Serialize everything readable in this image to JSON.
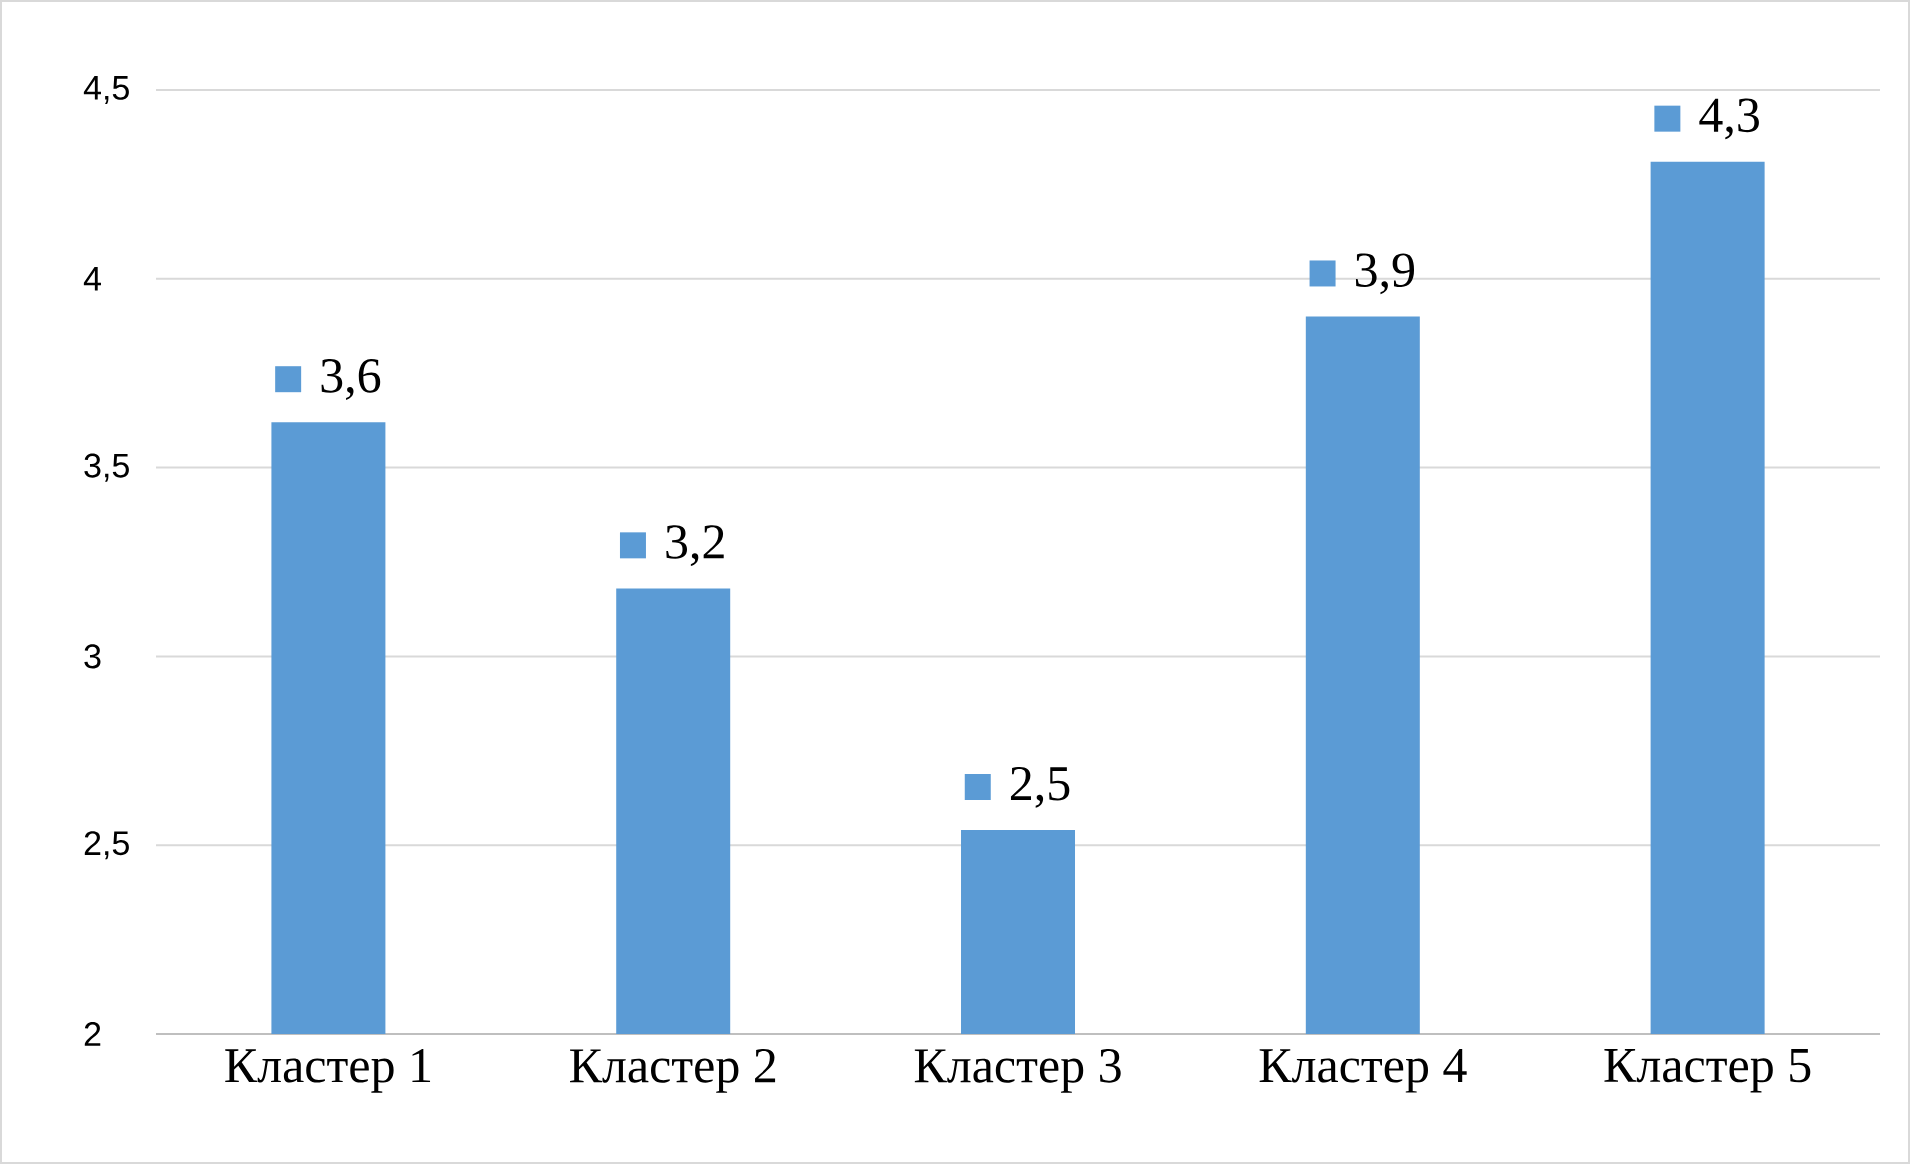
{
  "chart_data": {
    "type": "bar",
    "categories": [
      "Кластер 1",
      "Кластер 2",
      "Кластер 3",
      "Кластер 4",
      "Кластер 5"
    ],
    "values": [
      3.62,
      3.18,
      2.54,
      3.9,
      4.31
    ],
    "value_labels": [
      "3,6",
      "3,2",
      "2,5",
      "3,9",
      "4,3"
    ],
    "color": "#5b9bd5",
    "ylim": [
      2,
      4.5
    ],
    "yticks": [
      2,
      {
        "value": 2.5,
        "label": "2,5"
      },
      3,
      {
        "value": 3.5,
        "label": "3,5"
      },
      4,
      {
        "value": 4.5,
        "label": "4,5"
      }
    ],
    "grid": "y"
  }
}
